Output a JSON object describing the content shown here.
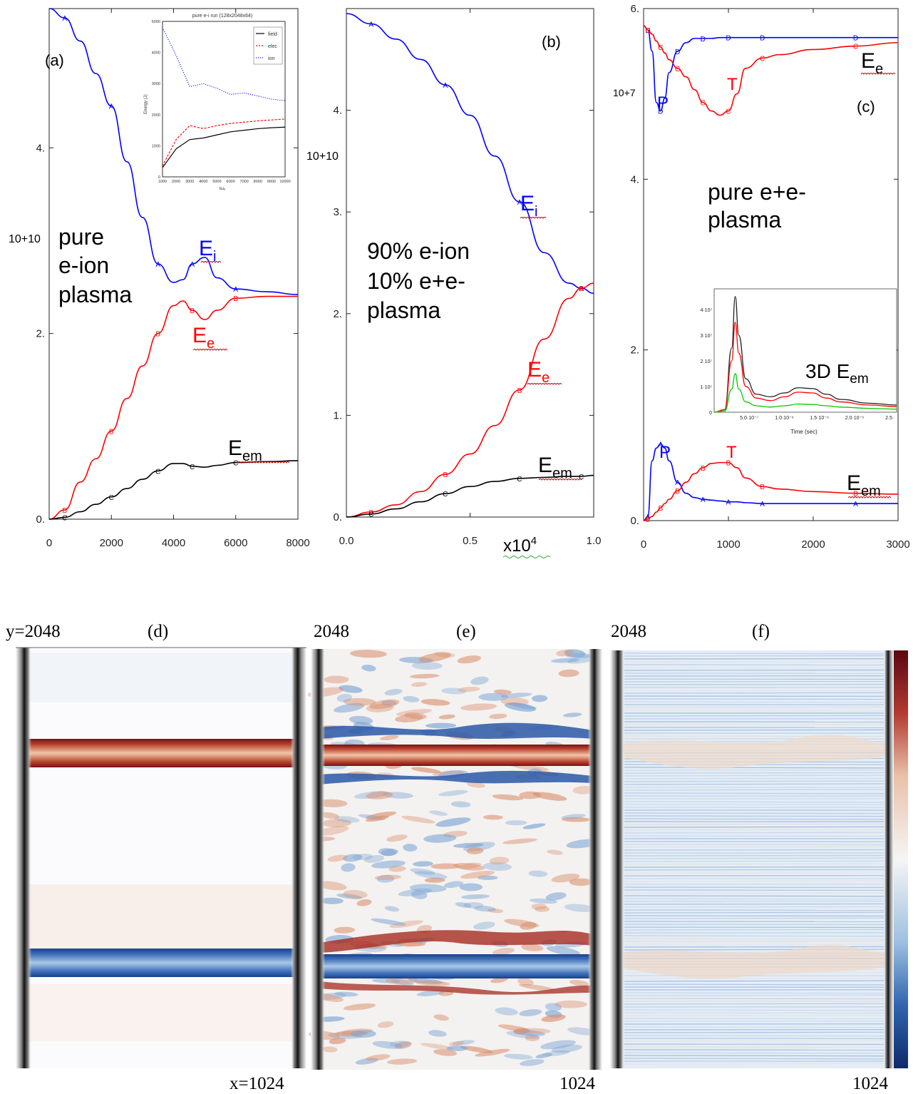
{
  "colors": {
    "field": "#000000",
    "electron": "#ff0000",
    "ion": "#0000ff",
    "green": "#00cc00",
    "squiggle": "#cc0000"
  },
  "chart_data": [
    {
      "type": "line",
      "panel_label": "(a)",
      "annotation": [
        "pure",
        "e-ion",
        "plasma"
      ],
      "y_exponent": "10+10",
      "x": [
        0,
        500,
        1000,
        1500,
        2000,
        2500,
        3000,
        3500,
        4000,
        4300,
        4600,
        5000,
        5400,
        6000,
        7000,
        8000
      ],
      "xticks": [
        "0",
        "2000",
        "4000",
        "6000",
        "8000"
      ],
      "yticks": [
        "0.",
        "2.",
        "4."
      ],
      "xlim": [
        0,
        8000
      ],
      "ylim": [
        0,
        5.5
      ],
      "series": [
        {
          "name": "E_i",
          "label_main": "E",
          "label_sub": "i",
          "values": [
            5.5,
            5.4,
            5.15,
            4.8,
            4.45,
            3.85,
            3.25,
            2.75,
            2.55,
            2.58,
            2.75,
            2.82,
            2.6,
            2.48,
            2.45,
            2.42
          ]
        },
        {
          "name": "E_e",
          "label_main": "E",
          "label_sub": "e",
          "values": [
            0,
            0.1,
            0.4,
            0.65,
            0.95,
            1.3,
            1.65,
            2.0,
            2.3,
            2.35,
            2.25,
            2.15,
            2.25,
            2.38,
            2.4,
            2.4
          ]
        },
        {
          "name": "E_em",
          "label_main": "E",
          "label_sub": "em",
          "values": [
            0,
            0.02,
            0.08,
            0.16,
            0.24,
            0.33,
            0.43,
            0.52,
            0.6,
            0.6,
            0.57,
            0.56,
            0.58,
            0.61,
            0.62,
            0.63
          ]
        }
      ],
      "inset": {
        "title": "pure e-i run (128x2048x64)",
        "ylabel": "Energy (J)",
        "xlabel": "tωₑ",
        "x": [
          1000,
          2000,
          3000,
          4000,
          5000,
          6000,
          7000,
          8000,
          9000,
          10000
        ],
        "xticks": [
          "1000",
          "2000",
          "3000",
          "4000",
          "5000",
          "6000",
          "7000",
          "8000",
          "9000",
          "10000"
        ],
        "yticks": [
          "0",
          "1000",
          "2000",
          "3000",
          "4000",
          "5000"
        ],
        "legend": [
          "field",
          "elec",
          "ion"
        ],
        "series": [
          {
            "name": "field",
            "values": [
              300,
              900,
              1200,
              1250,
              1350,
              1450,
              1500,
              1550,
              1580,
              1600
            ]
          },
          {
            "name": "elec",
            "values": [
              350,
              1200,
              1650,
              1550,
              1650,
              1720,
              1760,
              1800,
              1830,
              1860
            ]
          },
          {
            "name": "ion",
            "values": [
              4800,
              3900,
              2900,
              3000,
              2850,
              2650,
              2700,
              2600,
              2500,
              2450
            ]
          }
        ]
      }
    },
    {
      "type": "line",
      "panel_label": "(b)",
      "annotation": [
        "90% e-ion",
        "10% e+e-",
        "plasma"
      ],
      "y_exponent": "10+10",
      "x_multiplier": "x10",
      "x_multiplier_exp": "4",
      "x": [
        0,
        0.1,
        0.2,
        0.3,
        0.4,
        0.5,
        0.6,
        0.7,
        0.8,
        0.9,
        0.95,
        1.0
      ],
      "xticks": [
        "0.0",
        "0.5",
        "1.0"
      ],
      "yticks": [
        "0.",
        "1.",
        "2.",
        "3.",
        "4."
      ],
      "xlim": [
        0,
        1
      ],
      "ylim": [
        0,
        5
      ],
      "series": [
        {
          "name": "E_i",
          "label_main": "E",
          "label_sub": "i",
          "values": [
            4.95,
            4.85,
            4.7,
            4.5,
            4.25,
            3.95,
            3.55,
            3.1,
            2.6,
            2.3,
            2.25,
            2.2
          ]
        },
        {
          "name": "E_e",
          "label_main": "E",
          "label_sub": "e",
          "values": [
            0,
            0.05,
            0.12,
            0.25,
            0.42,
            0.62,
            0.9,
            1.25,
            1.75,
            2.15,
            2.25,
            2.3
          ]
        },
        {
          "name": "E_em",
          "label_main": "E",
          "label_sub": "em",
          "values": [
            0,
            0.03,
            0.08,
            0.15,
            0.23,
            0.3,
            0.35,
            0.38,
            0.39,
            0.4,
            0.4,
            0.41
          ]
        }
      ]
    },
    {
      "type": "line",
      "panel_label": "(c)",
      "annotation": [
        "pure e+e-",
        "plasma"
      ],
      "y_exponent": "10+7",
      "x": [
        0,
        50,
        100,
        150,
        200,
        250,
        300,
        400,
        500,
        600,
        700,
        800,
        900,
        1000,
        1100,
        1200,
        1400,
        1600,
        2000,
        2500,
        3000
      ],
      "xticks": [
        "0",
        "1000",
        "2000",
        "3000"
      ],
      "yticks": [
        "0.",
        "2.",
        "4.",
        "6."
      ],
      "xlim": [
        0,
        3000
      ],
      "ylim": [
        0,
        6
      ],
      "series": [
        {
          "name": "E_i",
          "label_main": "E",
          "label_sub": "e",
          "values": [
            5.8,
            5.75,
            5.5,
            4.9,
            4.8,
            4.95,
            5.25,
            5.5,
            5.6,
            5.65,
            5.65,
            5.65,
            5.66,
            5.66,
            5.66,
            5.66,
            5.66,
            5.66,
            5.66,
            5.66,
            5.66
          ]
        },
        {
          "name": "E_e",
          "label_main": "E",
          "label_sub": "e",
          "values": [
            5.8,
            5.75,
            5.7,
            5.62,
            5.55,
            5.48,
            5.4,
            5.3,
            5.2,
            5.05,
            4.9,
            4.8,
            4.75,
            4.8,
            5.0,
            5.3,
            5.42,
            5.46,
            5.52,
            5.56,
            5.6
          ]
        },
        {
          "name": "E_em_P",
          "label_main": "E",
          "label_sub": "em",
          "values": [
            0,
            0.05,
            0.7,
            0.85,
            0.9,
            0.85,
            0.7,
            0.45,
            0.32,
            0.27,
            0.25,
            0.24,
            0.23,
            0.22,
            0.22,
            0.21,
            0.2,
            0.2,
            0.2,
            0.2,
            0.2
          ]
        },
        {
          "name": "E_em_T",
          "label_main": "E",
          "label_sub": "em",
          "values": [
            0,
            0.02,
            0.05,
            0.1,
            0.15,
            0.2,
            0.25,
            0.35,
            0.45,
            0.55,
            0.62,
            0.67,
            0.68,
            0.68,
            0.62,
            0.5,
            0.4,
            0.37,
            0.34,
            0.32,
            0.31
          ]
        }
      ],
      "labels": {
        "P": "P",
        "T": "T"
      },
      "inset": {
        "label": "3D E",
        "label_sub": "em",
        "xlabel": "Time (sec)",
        "yticks": [
          "0",
          "1·10⁷",
          "2·10⁷",
          "3·10⁷",
          "4·10⁷"
        ],
        "xticks": [
          "5.0·10⁻⁷",
          "1.0·10⁻⁶",
          "1.5·10⁻⁶",
          "2.0·10⁻⁶",
          "2.5·"
        ],
        "x": [
          0,
          1.5,
          2.5,
          3.0,
          3.5,
          4.5,
          6,
          8,
          10,
          12,
          14,
          16,
          18,
          22,
          26
        ],
        "series": [
          {
            "name": "total",
            "values": [
              0,
              0.1,
              2.5,
              4.5,
              3.0,
              1.3,
              0.7,
              0.6,
              0.75,
              0.95,
              0.92,
              0.7,
              0.5,
              0.35,
              0.28
            ]
          },
          {
            "name": "red",
            "values": [
              0,
              0.1,
              2.0,
              3.5,
              2.3,
              1.0,
              0.55,
              0.45,
              0.6,
              0.78,
              0.75,
              0.55,
              0.4,
              0.28,
              0.22
            ]
          },
          {
            "name": "green",
            "values": [
              0,
              0.05,
              0.9,
              1.5,
              0.9,
              0.4,
              0.25,
              0.2,
              0.25,
              0.32,
              0.3,
              0.25,
              0.2,
              0.15,
              0.12
            ]
          }
        ]
      }
    },
    {
      "type": "heatmap",
      "panel_label": "(d)",
      "y_top_label": "y=2048",
      "x_right_label": "x=1024"
    },
    {
      "type": "heatmap",
      "panel_label": "(e)",
      "y_top_label": "2048",
      "x_right_label": "1024"
    },
    {
      "type": "heatmap",
      "panel_label": "(f)",
      "y_top_label": "2048",
      "x_right_label": "1024"
    }
  ]
}
